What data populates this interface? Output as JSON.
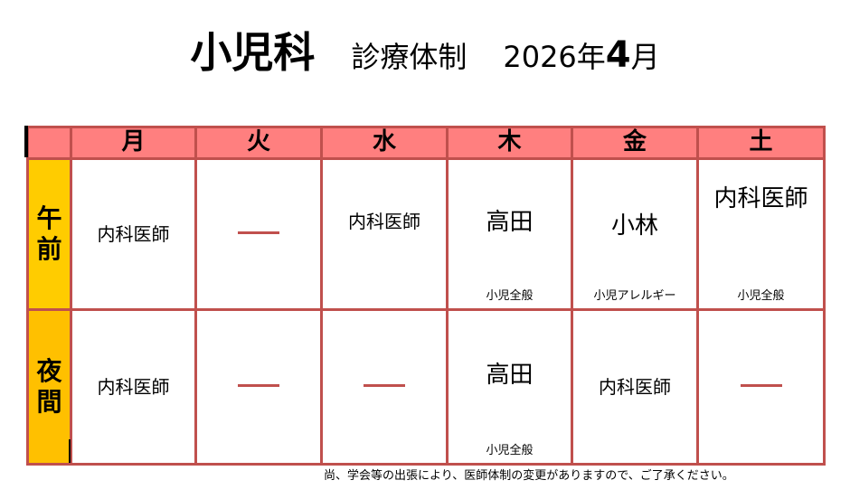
{
  "title": {
    "department": "小児科",
    "subtitle": "診療体制",
    "year": "2026年",
    "month": "4",
    "month_suffix": "月"
  },
  "colors": {
    "border": "#c0504d",
    "header": "#ff7f7f",
    "morning": "#ffcc00",
    "evening": "#ffc000"
  },
  "days": [
    "月",
    "火",
    "水",
    "木",
    "金",
    "土"
  ],
  "rows": [
    {
      "label": "午前",
      "cells": [
        {
          "doctor": "内科医師",
          "specialty": ""
        },
        {
          "doctor": "—",
          "specialty": ""
        },
        {
          "doctor": "内科医師",
          "specialty": ""
        },
        {
          "doctor": "高田",
          "specialty": "小児全般"
        },
        {
          "doctor": "小林",
          "specialty": "小児アレルギー"
        },
        {
          "doctor": "内科医師",
          "specialty": "小児全般"
        }
      ]
    },
    {
      "label": "夜間",
      "cells": [
        {
          "doctor": "内科医師",
          "specialty": ""
        },
        {
          "doctor": "—",
          "specialty": ""
        },
        {
          "doctor": "—",
          "specialty": ""
        },
        {
          "doctor": "高田",
          "specialty": "小児全般"
        },
        {
          "doctor": "内科医師",
          "specialty": ""
        },
        {
          "doctor": "—",
          "specialty": ""
        }
      ]
    }
  ],
  "note": "尚、学会等の出張により、医師体制の変更がありますので、ご了承ください。"
}
